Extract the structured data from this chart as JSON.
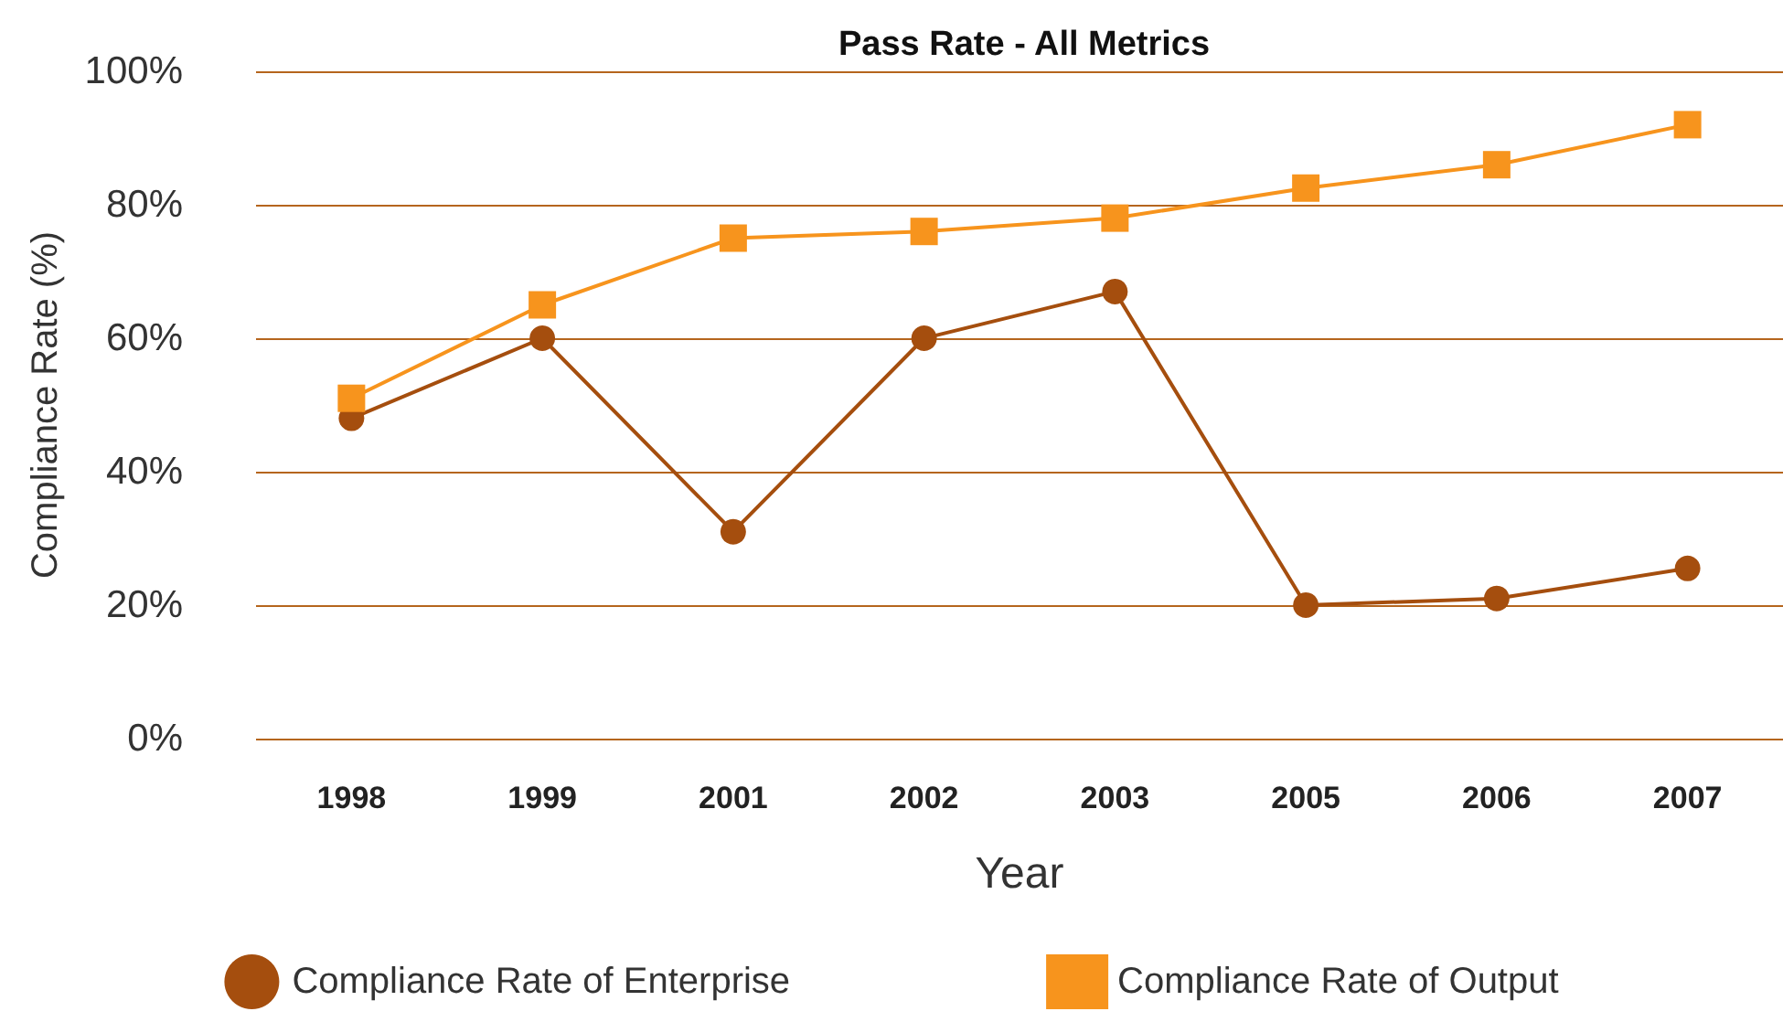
{
  "chart_data": {
    "type": "line",
    "title": "Pass Rate - All Metrics",
    "xlabel": "Year",
    "ylabel": "Compliance Rate (%)",
    "categories": [
      "1998",
      "1999",
      "2001",
      "2002",
      "2003",
      "2005",
      "2006",
      "2007"
    ],
    "series": [
      {
        "name": "Compliance Rate of Enterprise",
        "color": "#a54e0e",
        "marker": "circle",
        "values": [
          48,
          60,
          31,
          60,
          67,
          20,
          21,
          25.5
        ]
      },
      {
        "name": "Compliance Rate of Output",
        "color": "#f7941d",
        "marker": "square",
        "values": [
          51,
          65,
          75,
          76,
          78,
          82.5,
          86,
          92
        ]
      }
    ],
    "ylim": [
      0,
      100
    ],
    "yticks": [
      {
        "value": 0,
        "label": "0%"
      },
      {
        "value": 20,
        "label": "20%"
      },
      {
        "value": 40,
        "label": "40%"
      },
      {
        "value": 60,
        "label": "60%"
      },
      {
        "value": 80,
        "label": "80%"
      },
      {
        "value": 100,
        "label": "100%"
      }
    ],
    "grid": "y",
    "legend": "bottom"
  }
}
